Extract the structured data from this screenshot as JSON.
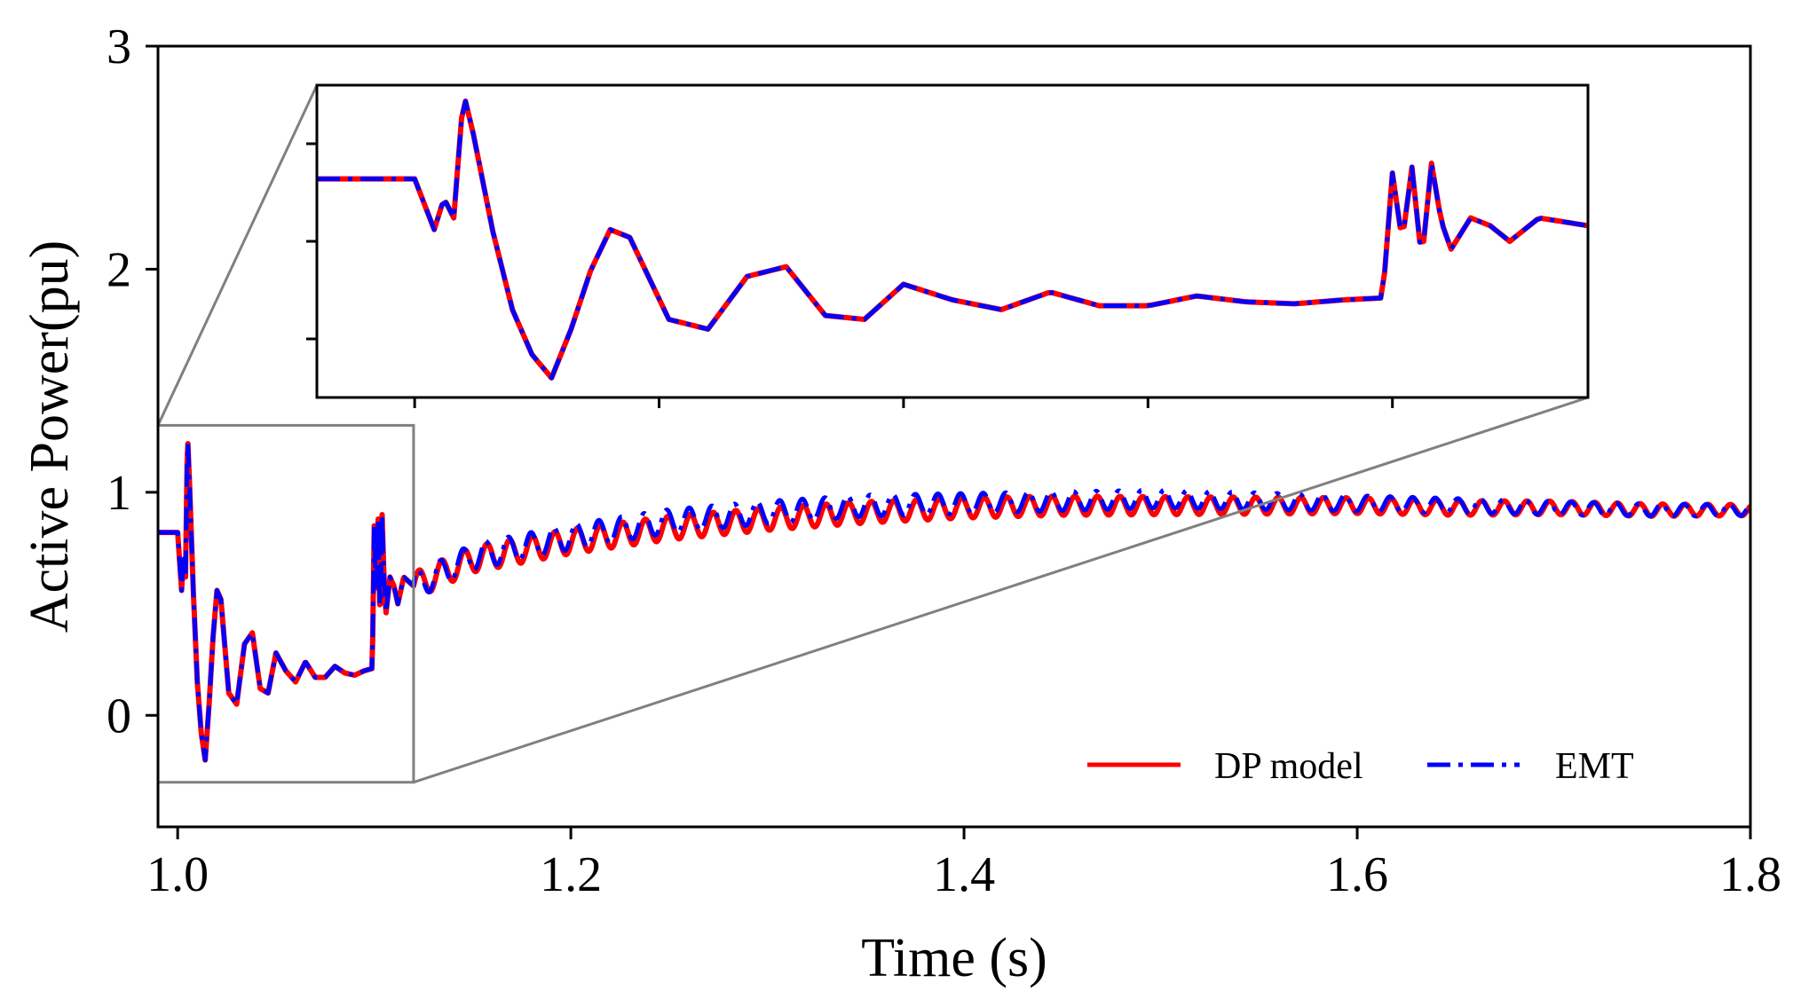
{
  "chart_data": {
    "type": "line",
    "xlabel": "Time (s)",
    "ylabel": "Active Power(pu)",
    "xlim": [
      0.99,
      1.8
    ],
    "ylim": [
      -0.5,
      3.0
    ],
    "xticks": [
      1.0,
      1.2,
      1.4,
      1.6,
      1.8
    ],
    "xtick_labels": [
      "1.0",
      "1.2",
      "1.4",
      "1.6",
      "1.8"
    ],
    "yticks": [
      0,
      1,
      2,
      3
    ],
    "ytick_labels": [
      "0",
      "1",
      "2",
      "3"
    ],
    "grid": false,
    "legend_position": "lower-right",
    "series": [
      {
        "name": "DP model",
        "color": "#ff0000",
        "style": "solid",
        "x": [
          0.99,
          1.0,
          1.002,
          1.003,
          1.004,
          1.005,
          1.006,
          1.008,
          1.01,
          1.012,
          1.014,
          1.016,
          1.018,
          1.02,
          1.022,
          1.026,
          1.03,
          1.034,
          1.038,
          1.042,
          1.046,
          1.05,
          1.055,
          1.06,
          1.065,
          1.07,
          1.075,
          1.08,
          1.085,
          1.09,
          1.095,
          1.099,
          1.1,
          1.101,
          1.102,
          1.103,
          1.104,
          1.105,
          1.106,
          1.108,
          1.11,
          1.112,
          1.115,
          1.12,
          1.13,
          1.15,
          1.2,
          1.25,
          1.3,
          1.35,
          1.4,
          1.45,
          1.5,
          1.55,
          1.6,
          1.65,
          1.7,
          1.75,
          1.8
        ],
        "y": [
          0.82,
          0.82,
          0.56,
          0.72,
          0.62,
          1.26,
          1.05,
          0.55,
          0.15,
          -0.08,
          -0.2,
          0.05,
          0.35,
          0.56,
          0.52,
          0.1,
          0.05,
          0.32,
          0.37,
          0.12,
          0.1,
          0.28,
          0.2,
          0.15,
          0.24,
          0.17,
          0.17,
          0.22,
          0.19,
          0.18,
          0.2,
          0.21,
          0.85,
          0.5,
          0.88,
          0.4,
          0.9,
          0.6,
          0.46,
          0.62,
          0.58,
          0.5,
          0.62,
          0.58,
          0.62,
          0.7,
          0.78,
          0.84,
          0.88,
          0.91,
          0.93,
          0.94,
          0.94,
          0.94,
          0.94,
          0.93,
          0.93,
          0.92,
          0.92
        ]
      },
      {
        "name": "EMT",
        "color": "#0000ff",
        "style": "dashdot",
        "x": [
          0.99,
          1.0,
          1.002,
          1.003,
          1.004,
          1.005,
          1.006,
          1.008,
          1.01,
          1.012,
          1.014,
          1.016,
          1.018,
          1.02,
          1.022,
          1.026,
          1.03,
          1.034,
          1.038,
          1.042,
          1.046,
          1.05,
          1.055,
          1.06,
          1.065,
          1.07,
          1.075,
          1.08,
          1.085,
          1.09,
          1.095,
          1.099,
          1.1,
          1.101,
          1.102,
          1.103,
          1.104,
          1.105,
          1.106,
          1.108,
          1.11,
          1.112,
          1.115,
          1.12,
          1.13,
          1.15,
          1.2,
          1.25,
          1.3,
          1.35,
          1.4,
          1.45,
          1.5,
          1.55,
          1.6,
          1.65,
          1.7,
          1.75,
          1.8
        ],
        "y": [
          0.82,
          0.82,
          0.56,
          0.72,
          0.62,
          1.26,
          1.05,
          0.55,
          0.15,
          -0.08,
          -0.2,
          0.05,
          0.35,
          0.56,
          0.52,
          0.1,
          0.05,
          0.32,
          0.37,
          0.12,
          0.1,
          0.28,
          0.2,
          0.15,
          0.24,
          0.17,
          0.17,
          0.22,
          0.19,
          0.18,
          0.2,
          0.21,
          0.85,
          0.5,
          0.88,
          0.4,
          0.9,
          0.6,
          0.46,
          0.62,
          0.58,
          0.5,
          0.62,
          0.58,
          0.62,
          0.71,
          0.8,
          0.87,
          0.91,
          0.94,
          0.95,
          0.96,
          0.97,
          0.96,
          0.95,
          0.94,
          0.93,
          0.92,
          0.92
        ]
      }
    ],
    "oscillation": {
      "period": 0.0115,
      "amp_start": 0.06,
      "amp_end": 0.025
    },
    "inset": {
      "xlim": [
        0.99,
        1.12
      ],
      "ylim": [
        -0.3,
        1.3
      ],
      "xticks": [
        1.0,
        1.025,
        1.05,
        1.075,
        1.1
      ],
      "yticks": [
        0.0,
        0.5,
        1.0
      ],
      "box_color": "#808080"
    }
  }
}
